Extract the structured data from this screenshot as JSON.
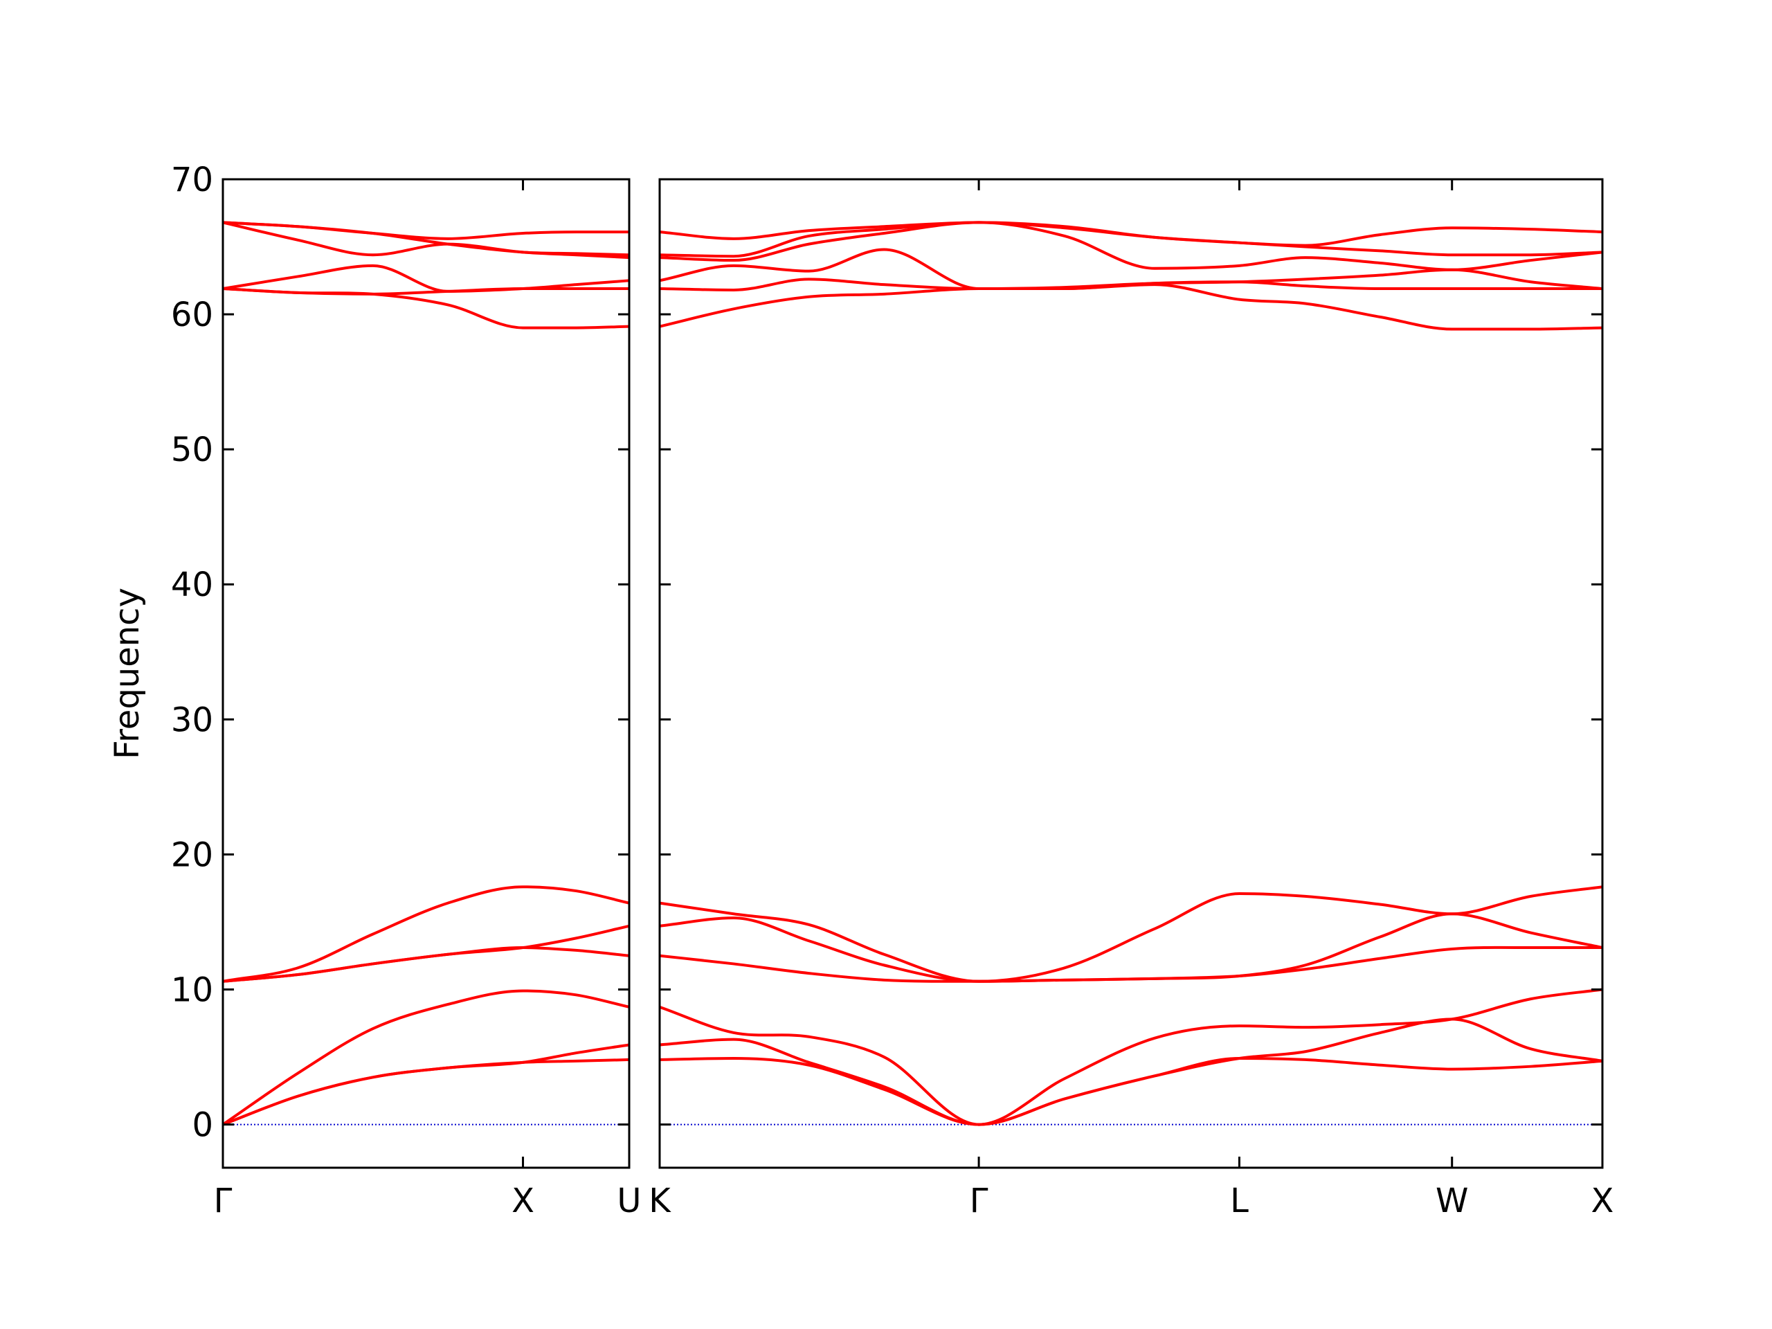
{
  "chart_data": [
    {
      "type": "line",
      "ylabel": "Frequency",
      "color": "#ff0000",
      "zero_line_color": "#0000cd",
      "xlim": [
        0,
        1.354
      ],
      "ylim": [
        -3.2,
        70
      ],
      "xticks": [
        {
          "value": 0,
          "label": "Γ"
        },
        {
          "value": 1,
          "label": "X"
        },
        {
          "value": 1.354,
          "label": "U"
        }
      ],
      "yticks": [
        0,
        10,
        20,
        30,
        40,
        50,
        60,
        70
      ],
      "x": [
        0,
        0.25,
        0.5,
        0.75,
        1,
        1.177,
        1.354
      ],
      "series": [
        {
          "values": [
            0,
            2.1,
            3.5,
            4.2,
            4.6,
            4.7,
            4.8
          ]
        },
        {
          "values": [
            0,
            2.1,
            3.5,
            4.2,
            4.6,
            5.3,
            5.9
          ]
        },
        {
          "values": [
            0,
            3.8,
            7.1,
            8.9,
            9.9,
            9.6,
            8.7
          ]
        },
        {
          "values": [
            10.6,
            11.1,
            11.9,
            12.6,
            13.1,
            12.9,
            12.5
          ]
        },
        {
          "values": [
            10.6,
            11.1,
            11.9,
            12.6,
            13.1,
            13.8,
            14.7
          ]
        },
        {
          "values": [
            10.6,
            11.6,
            14.1,
            16.4,
            17.6,
            17.3,
            16.4
          ]
        },
        {
          "values": [
            61.9,
            61.6,
            61.5,
            60.7,
            59.0,
            59.0,
            59.1
          ]
        },
        {
          "values": [
            61.9,
            61.6,
            61.5,
            61.7,
            61.9,
            61.9,
            61.9
          ]
        },
        {
          "values": [
            61.9,
            62.8,
            63.6,
            61.7,
            61.9,
            62.2,
            62.5
          ]
        },
        {
          "values": [
            66.8,
            65.5,
            64.4,
            65.2,
            64.6,
            64.4,
            64.2
          ]
        },
        {
          "values": [
            66.8,
            66.5,
            66.0,
            65.2,
            64.6,
            64.5,
            64.4
          ]
        },
        {
          "values": [
            66.8,
            66.5,
            66.0,
            65.6,
            66.0,
            66.1,
            66.1
          ]
        }
      ]
    },
    {
      "type": "line",
      "color": "#ff0000",
      "zero_line_color": "#0000cd",
      "xlim": [
        1.354,
        4.488
      ],
      "ylim": [
        -3.2,
        70
      ],
      "xticks": [
        {
          "value": 1.354,
          "label": "K"
        },
        {
          "value": 2.415,
          "label": "Γ"
        },
        {
          "value": 3.281,
          "label": "L"
        },
        {
          "value": 3.988,
          "label": "W"
        },
        {
          "value": 4.488,
          "label": "X"
        }
      ],
      "x": [
        1.354,
        1.6,
        1.85,
        2.1,
        2.415,
        2.7,
        3.0,
        3.281,
        3.5,
        3.75,
        3.988,
        4.25,
        4.488
      ],
      "series": [
        {
          "values": [
            4.8,
            4.9,
            4.4,
            2.6,
            0,
            1.9,
            3.6,
            4.9,
            4.8,
            4.4,
            4.1,
            4.3,
            4.7
          ]
        },
        {
          "values": [
            5.9,
            6.3,
            4.6,
            2.8,
            0,
            1.9,
            3.6,
            4.9,
            5.4,
            6.8,
            7.8,
            5.6,
            4.7
          ]
        },
        {
          "values": [
            8.7,
            6.8,
            6.5,
            5.0,
            0,
            3.4,
            6.4,
            7.3,
            7.2,
            7.4,
            7.8,
            9.3,
            10.0
          ]
        },
        {
          "values": [
            12.5,
            11.9,
            11.2,
            10.7,
            10.6,
            10.7,
            10.8,
            11.0,
            11.5,
            12.3,
            13.0,
            13.1,
            13.1
          ]
        },
        {
          "values": [
            14.7,
            15.3,
            13.6,
            11.8,
            10.6,
            10.7,
            10.8,
            11.0,
            11.8,
            13.9,
            15.6,
            14.2,
            13.1
          ]
        },
        {
          "values": [
            16.4,
            15.6,
            14.8,
            12.6,
            10.6,
            11.6,
            14.5,
            17.1,
            16.9,
            16.3,
            15.6,
            16.9,
            17.6
          ]
        },
        {
          "values": [
            59.1,
            60.4,
            61.3,
            61.5,
            61.9,
            61.9,
            62.2,
            61.1,
            60.8,
            59.8,
            58.9,
            58.9,
            59.0
          ]
        },
        {
          "values": [
            61.9,
            61.8,
            62.6,
            62.2,
            61.9,
            61.9,
            62.3,
            62.4,
            62.1,
            61.9,
            61.9,
            61.9,
            61.9
          ]
        },
        {
          "values": [
            62.5,
            63.6,
            63.2,
            64.8,
            61.9,
            62.0,
            62.3,
            62.4,
            62.6,
            62.9,
            63.3,
            62.4,
            61.9
          ]
        },
        {
          "values": [
            64.2,
            64.0,
            65.2,
            66.0,
            66.8,
            65.8,
            63.4,
            63.6,
            64.2,
            63.8,
            63.3,
            64.0,
            64.6
          ]
        },
        {
          "values": [
            64.4,
            64.3,
            65.8,
            66.3,
            66.8,
            66.4,
            65.7,
            65.3,
            65.0,
            64.7,
            64.4,
            64.4,
            64.6
          ]
        },
        {
          "values": [
            66.1,
            65.6,
            66.2,
            66.5,
            66.8,
            66.5,
            65.7,
            65.3,
            65.1,
            65.9,
            66.4,
            66.3,
            66.1
          ]
        }
      ]
    }
  ]
}
